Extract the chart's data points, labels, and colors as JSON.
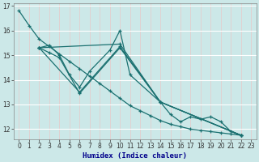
{
  "xlabel": "Humidex (Indice chaleur)",
  "bg_color": "#cce8e8",
  "grid_color": "#ffffff",
  "grid_color_minor": "#e8d8d8",
  "line_color": "#1a7070",
  "xlim": [
    -0.5,
    23.5
  ],
  "ylim": [
    11.6,
    17.1
  ],
  "yticks": [
    12,
    13,
    14,
    15,
    16,
    17
  ],
  "xticks": [
    0,
    1,
    2,
    3,
    4,
    5,
    6,
    7,
    8,
    9,
    10,
    11,
    12,
    13,
    14,
    15,
    16,
    17,
    18,
    19,
    20,
    21,
    22,
    23
  ],
  "series": [
    {
      "x": [
        0,
        1,
        2,
        3,
        4,
        5,
        6,
        7,
        8,
        9,
        10,
        11,
        12,
        13,
        14,
        15,
        16,
        17,
        18,
        19,
        20,
        21,
        22
      ],
      "y": [
        16.8,
        16.2,
        15.65,
        15.35,
        15.05,
        14.75,
        14.45,
        14.15,
        13.85,
        13.55,
        13.25,
        12.95,
        12.75,
        12.55,
        12.35,
        12.2,
        12.1,
        12.0,
        11.95,
        11.9,
        11.85,
        11.8,
        11.75
      ]
    },
    {
      "x": [
        2,
        3,
        4,
        5,
        6,
        7,
        9,
        10,
        11,
        14,
        15,
        16,
        17,
        18,
        19,
        20,
        21,
        22
      ],
      "y": [
        15.3,
        15.4,
        15.0,
        14.2,
        13.7,
        14.35,
        15.2,
        16.0,
        14.2,
        13.1,
        12.6,
        12.3,
        12.5,
        12.4,
        12.5,
        12.3,
        11.9,
        11.75
      ]
    },
    {
      "x": [
        2,
        10,
        14,
        22
      ],
      "y": [
        15.3,
        15.45,
        13.1,
        11.75
      ]
    },
    {
      "x": [
        2,
        6,
        10,
        14,
        22
      ],
      "y": [
        15.3,
        13.5,
        15.35,
        13.1,
        11.75
      ]
    },
    {
      "x": [
        2,
        3,
        4,
        6,
        10,
        14,
        22
      ],
      "y": [
        15.3,
        15.1,
        14.9,
        13.45,
        15.3,
        13.1,
        11.75
      ]
    }
  ]
}
